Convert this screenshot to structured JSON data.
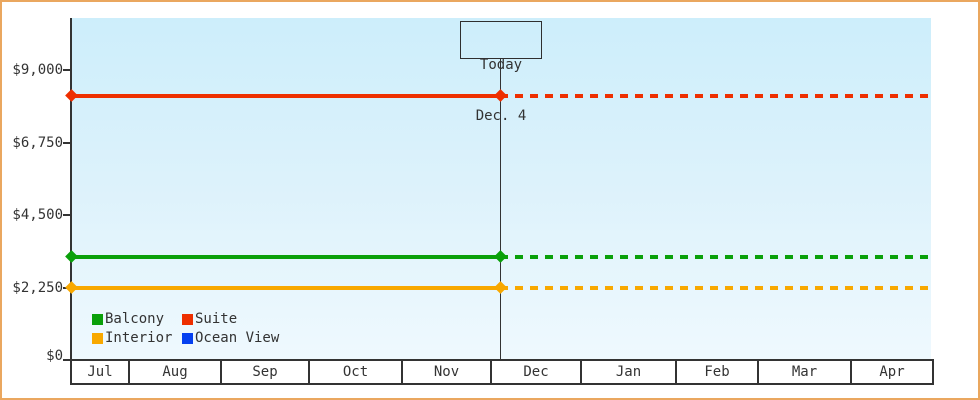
{
  "frame": {
    "border_color": "#eaa75f",
    "background": "#ffffff",
    "axis_color": "#333333",
    "plot_background_top": "#cdeefb",
    "plot_background_bottom": "#eff9fe"
  },
  "chart_data": {
    "type": "line",
    "x_categories": [
      "Jul",
      "Aug",
      "Sep",
      "Oct",
      "Nov",
      "Dec",
      "Jan",
      "Feb",
      "Mar",
      "Apr"
    ],
    "y_axis": {
      "ticks": [
        {
          "label": "$9,000",
          "value": 9000
        },
        {
          "label": "$6,750",
          "value": 6750
        },
        {
          "label": "$4,500",
          "value": 4500
        },
        {
          "label": "$2,250",
          "value": 2250
        },
        {
          "label": "$0",
          "value": 0
        }
      ],
      "range": [
        0,
        10600
      ]
    },
    "today": {
      "line1": "Today",
      "line2": "Dec. 4"
    },
    "line_style": {
      "before_today": "solid",
      "after_today": "dashed",
      "marker": "diamond"
    },
    "series": [
      {
        "name": "Suite",
        "color": "#ee2f00",
        "value": 8200,
        "visible": true
      },
      {
        "name": "Balcony",
        "color": "#0aa00a",
        "value": 3200,
        "visible": true
      },
      {
        "name": "Interior",
        "color": "#f8a800",
        "value": 2250,
        "visible": true
      },
      {
        "name": "Ocean View",
        "color": "#0540f0",
        "value": null,
        "visible": false
      }
    ],
    "legend_rows": [
      [
        "Balcony",
        "Suite"
      ],
      [
        "Interior",
        "Ocean View"
      ]
    ],
    "grid": "off",
    "legend_position": "bottom-left-inside"
  }
}
